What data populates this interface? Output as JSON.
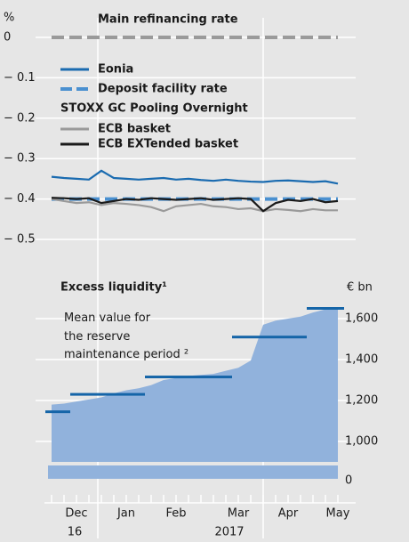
{
  "chart_data": [
    {
      "type": "line",
      "title": "Main refinancing rate",
      "y_label": "%",
      "legend_group": "STOXX GC Pooling Overnight",
      "categories": [
        null,
        null,
        "Dec",
        null,
        null,
        null,
        "Jan",
        null,
        null,
        null,
        "Feb",
        null,
        null,
        null,
        null,
        "Mar",
        null,
        null,
        null,
        "Apr",
        null,
        null,
        null,
        "May"
      ],
      "years": [
        "16",
        "2017"
      ],
      "ylim": [
        -0.55,
        0
      ],
      "yticks": [
        0,
        {
          "value": -0.1,
          "label": "− 0.1"
        },
        {
          "value": -0.2,
          "label": "− 0.2"
        },
        {
          "value": -0.3,
          "label": "− 0.3"
        },
        {
          "value": -0.4,
          "label": "− 0.4"
        },
        {
          "value": -0.5,
          "label": "− 0.5"
        }
      ],
      "grid": true,
      "series": [
        {
          "name": "Main refinancing rate",
          "color": "#9a9a9a",
          "dashed": true,
          "values": [
            0,
            0,
            0,
            0,
            0,
            0,
            0,
            0,
            0,
            0,
            0,
            0,
            0,
            0,
            0,
            0,
            0,
            0,
            0,
            0,
            0,
            0,
            0,
            0
          ]
        },
        {
          "name": "Eonia",
          "color": "#1a6bb0",
          "dashed": false,
          "values": [
            -0.345,
            -0.348,
            -0.35,
            -0.352,
            -0.33,
            -0.348,
            -0.35,
            -0.352,
            -0.35,
            -0.348,
            -0.352,
            -0.35,
            -0.353,
            -0.355,
            -0.352,
            -0.355,
            -0.357,
            -0.358,
            -0.355,
            -0.354,
            -0.356,
            -0.358,
            -0.356,
            -0.362
          ]
        },
        {
          "name": "Deposit facility rate",
          "color": "#4a90d0",
          "dashed": true,
          "values": [
            -0.4,
            -0.4,
            -0.4,
            -0.4,
            -0.4,
            -0.4,
            -0.4,
            -0.4,
            -0.4,
            -0.4,
            -0.4,
            -0.4,
            -0.4,
            -0.4,
            -0.4,
            -0.4,
            -0.4,
            -0.4,
            -0.4,
            -0.4,
            -0.4,
            -0.4,
            -0.4,
            -0.4
          ]
        },
        {
          "name": "ECB basket",
          "color": "#9a9a9a",
          "dashed": false,
          "values": [
            -0.4,
            -0.405,
            -0.41,
            -0.408,
            -0.415,
            -0.41,
            -0.412,
            -0.415,
            -0.42,
            -0.43,
            -0.418,
            -0.415,
            -0.412,
            -0.418,
            -0.42,
            -0.425,
            -0.423,
            -0.43,
            -0.425,
            -0.427,
            -0.43,
            -0.425,
            -0.428,
            -0.428
          ]
        },
        {
          "name": "ECB EXTended basket",
          "color": "#1a1a1a",
          "dashed": false,
          "values": [
            -0.397,
            -0.398,
            -0.4,
            -0.398,
            -0.41,
            -0.405,
            -0.4,
            -0.402,
            -0.398,
            -0.4,
            -0.402,
            -0.4,
            -0.398,
            -0.402,
            -0.4,
            -0.398,
            -0.4,
            -0.43,
            -0.41,
            -0.402,
            -0.405,
            -0.4,
            -0.408,
            -0.405
          ]
        }
      ]
    },
    {
      "type": "area",
      "title": "Excess liquidity¹",
      "annotation": "Mean value for the reserve maintenance period ²",
      "y_label": "€ bn",
      "ylim": [
        900,
        1700
      ],
      "yticks": [
        0,
        {
          "value": 1000,
          "label": "1,000"
        },
        {
          "value": 1200,
          "label": "1,200"
        },
        {
          "value": 1400,
          "label": "1,400"
        },
        {
          "value": 1600,
          "label": "1,600"
        }
      ],
      "grid": true,
      "color": "#91b2dc",
      "values": [
        1180,
        1185,
        1195,
        1205,
        1215,
        1235,
        1250,
        1260,
        1275,
        1300,
        1310,
        1320,
        1325,
        1330,
        1345,
        1360,
        1395,
        1570,
        1590,
        1600,
        1610,
        1630,
        1645,
        1655
      ],
      "mean_color": "#1565a8",
      "mean_values": [
        1145,
        1145,
        1230,
        1230,
        1230,
        1230,
        1230,
        1230,
        1315,
        1315,
        1315,
        1315,
        1315,
        1315,
        1315,
        1510,
        1510,
        1510,
        1510,
        1510,
        1510,
        1650,
        1650,
        1650
      ]
    }
  ]
}
